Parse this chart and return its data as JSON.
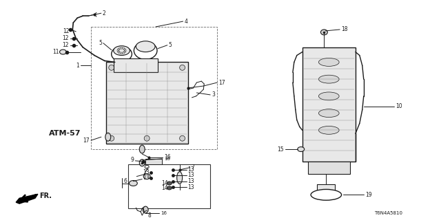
{
  "bg_color": "#ffffff",
  "fig_width": 6.4,
  "fig_height": 3.2,
  "dpi": 100,
  "diagram_code": "T6N4A5810",
  "atm_label": "ATM-57"
}
